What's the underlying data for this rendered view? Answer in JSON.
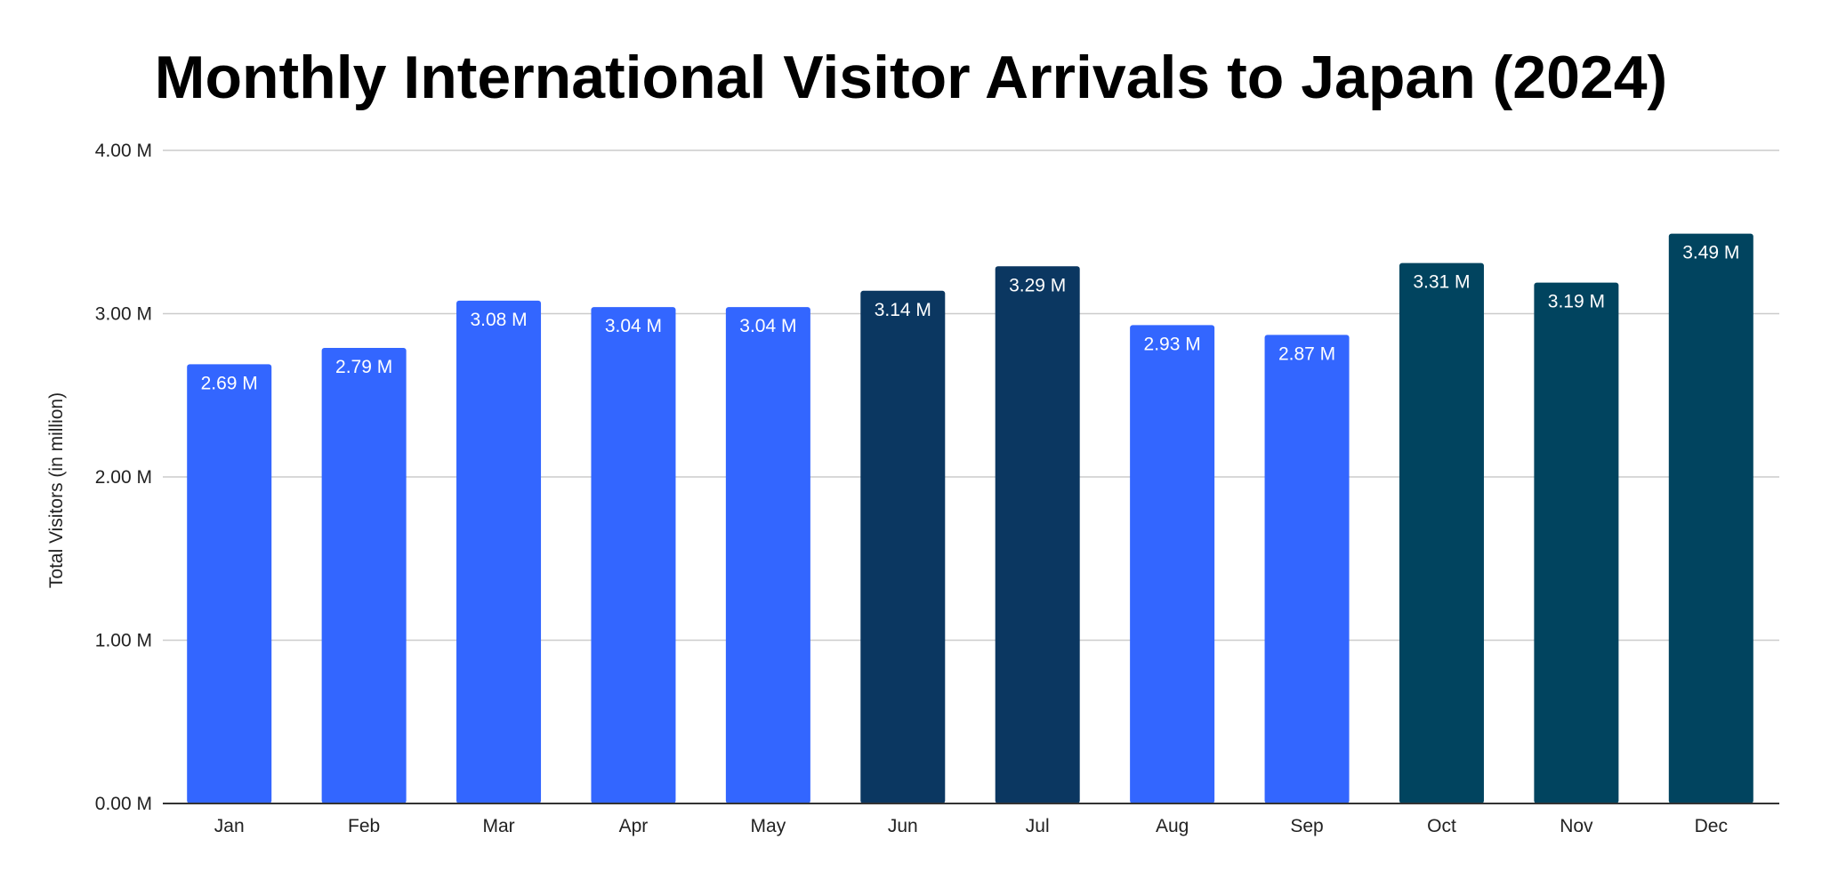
{
  "chart_data": {
    "type": "bar",
    "title": "Monthly International Visitor Arrivals to Japan (2024)",
    "xlabel": "",
    "ylabel": "Total Visitors (in million)",
    "categories": [
      "Jan",
      "Feb",
      "Mar",
      "Apr",
      "May",
      "Jun",
      "Jul",
      "Aug",
      "Sep",
      "Oct",
      "Nov",
      "Dec"
    ],
    "values": [
      2.69,
      2.79,
      3.08,
      3.04,
      3.04,
      3.14,
      3.29,
      2.93,
      2.87,
      3.31,
      3.19,
      3.49
    ],
    "value_labels": [
      "2.69 M",
      "2.79 M",
      "3.08 M",
      "3.04 M",
      "3.04 M",
      "3.14 M",
      "3.29 M",
      "2.93 M",
      "2.87 M",
      "3.31 M",
      "3.19 M",
      "3.49 M"
    ],
    "bar_colors": [
      "#3366ff",
      "#3366ff",
      "#3366ff",
      "#3366ff",
      "#3366ff",
      "#0b3761",
      "#0b3761",
      "#3366ff",
      "#3366ff",
      "#01445f",
      "#01445f",
      "#01445f"
    ],
    "ylim": [
      0,
      4
    ],
    "yticks": [
      0,
      1,
      2,
      3,
      4
    ],
    "ytick_labels": [
      "0.00 M",
      "1.00 M",
      "2.00 M",
      "3.00 M",
      "4.00 M"
    ],
    "grid": true,
    "legend": "none"
  }
}
